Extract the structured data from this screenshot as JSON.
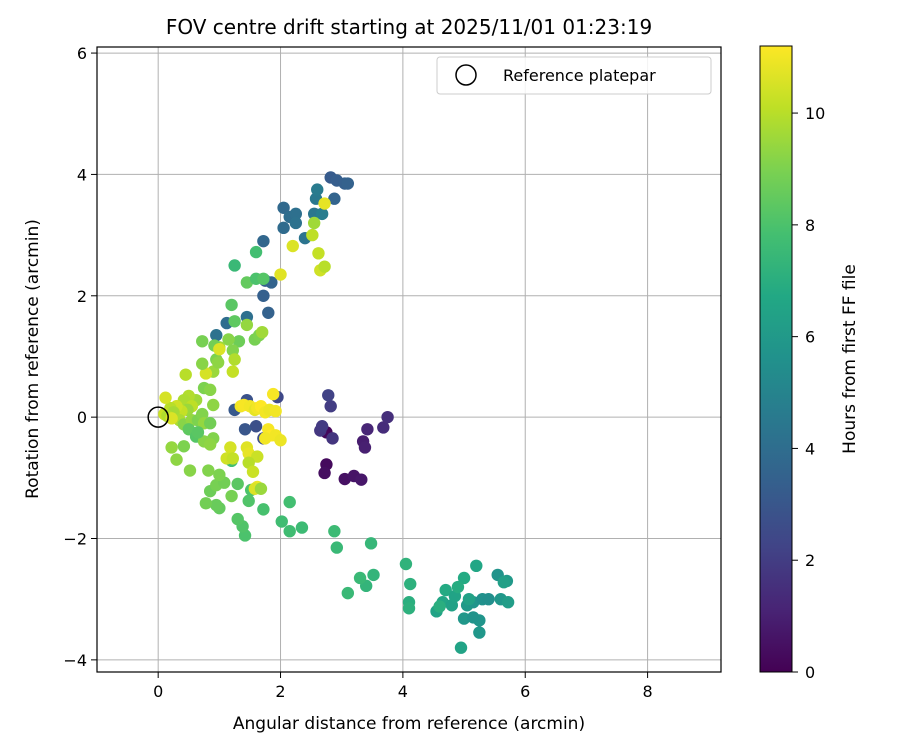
{
  "chart_data": {
    "type": "scatter",
    "title": "FOV centre drift starting at 2025/11/01 01:23:19",
    "xlabel": "Angular distance from reference (arcmin)",
    "ylabel": "Rotation from reference (arcmin)",
    "xlim": [
      -1.0,
      9.2
    ],
    "ylim": [
      -4.2,
      6.1
    ],
    "xticks": [
      0,
      2,
      4,
      6,
      8
    ],
    "yticks": [
      -4,
      -2,
      0,
      2,
      4,
      6
    ],
    "xtick_labels": [
      "0",
      "2",
      "4",
      "6",
      "8"
    ],
    "ytick_labels": [
      "−4",
      "−2",
      "0",
      "2",
      "4",
      "6"
    ],
    "grid": true,
    "colormap": "viridis",
    "colorbar": {
      "label": "Hours from first FF file",
      "range": [
        0,
        11.2
      ],
      "ticks": [
        0,
        2,
        4,
        6,
        8,
        10
      ],
      "tick_labels": [
        "0",
        "2",
        "4",
        "6",
        "8",
        "10"
      ]
    },
    "legend": {
      "position": "top-right",
      "entries": [
        "Reference platepar"
      ]
    },
    "reference": {
      "x": 0,
      "y": 0
    },
    "points": [
      [
        2.75,
        -0.25,
        0.2
      ],
      [
        2.75,
        -0.78,
        0.3
      ],
      [
        2.72,
        -0.92,
        0.4
      ],
      [
        3.05,
        -1.02,
        0.5
      ],
      [
        3.2,
        -0.97,
        0.6
      ],
      [
        3.32,
        -1.03,
        0.7
      ],
      [
        3.35,
        -0.4,
        0.9
      ],
      [
        3.38,
        -0.5,
        1.0
      ],
      [
        3.42,
        -0.2,
        1.2
      ],
      [
        3.68,
        -0.17,
        1.4
      ],
      [
        3.75,
        0.0,
        1.5
      ],
      [
        2.85,
        -0.35,
        1.7
      ],
      [
        2.65,
        -0.22,
        1.8
      ],
      [
        2.68,
        -0.15,
        1.9
      ],
      [
        2.82,
        0.18,
        2.0
      ],
      [
        2.78,
        0.36,
        2.2
      ],
      [
        1.95,
        0.33,
        2.4
      ],
      [
        1.72,
        -0.35,
        2.6
      ],
      [
        1.6,
        -0.15,
        2.7
      ],
      [
        1.45,
        0.28,
        2.8
      ],
      [
        1.42,
        -0.2,
        3.0
      ],
      [
        1.25,
        0.12,
        3.1
      ],
      [
        1.75,
        2.25,
        3.3
      ],
      [
        1.72,
        2.0,
        3.4
      ],
      [
        1.8,
        1.72,
        3.5
      ],
      [
        1.85,
        2.22,
        3.6
      ],
      [
        1.72,
        2.9,
        3.7
      ],
      [
        2.05,
        3.45,
        3.8
      ],
      [
        2.05,
        3.12,
        3.9
      ],
      [
        2.15,
        3.3,
        4.0
      ],
      [
        2.25,
        3.35,
        4.1
      ],
      [
        2.25,
        3.2,
        4.2
      ],
      [
        2.4,
        2.95,
        4.3
      ],
      [
        2.55,
        3.35,
        4.4
      ],
      [
        2.58,
        3.6,
        4.5
      ],
      [
        2.6,
        3.75,
        4.6
      ],
      [
        2.68,
        3.35,
        4.7
      ],
      [
        2.82,
        3.95,
        3.2
      ],
      [
        2.92,
        3.9,
        3.3
      ],
      [
        3.05,
        3.85,
        3.4
      ],
      [
        3.1,
        3.85,
        3.5
      ],
      [
        2.88,
        3.6,
        3.6
      ],
      [
        0.95,
        1.35,
        4.2
      ],
      [
        1.12,
        1.55,
        4.0
      ],
      [
        1.45,
        1.65,
        4.1
      ],
      [
        4.95,
        -3.8,
        6.5
      ],
      [
        5.25,
        -3.55,
        5.9
      ],
      [
        5.25,
        -3.35,
        5.8
      ],
      [
        5.0,
        -3.32,
        5.9
      ],
      [
        5.15,
        -3.3,
        5.7
      ],
      [
        4.55,
        -3.2,
        6.5
      ],
      [
        4.65,
        -3.05,
        6.6
      ],
      [
        4.8,
        -3.1,
        6.4
      ],
      [
        5.05,
        -3.1,
        6.0
      ],
      [
        5.15,
        -3.05,
        5.8
      ],
      [
        5.3,
        -3.0,
        5.6
      ],
      [
        5.4,
        -3.0,
        5.5
      ],
      [
        5.6,
        -3.0,
        5.9
      ],
      [
        5.72,
        -3.05,
        6.2
      ],
      [
        5.55,
        -2.6,
        5.7
      ],
      [
        5.7,
        -2.7,
        6.0
      ],
      [
        5.65,
        -2.72,
        6.3
      ],
      [
        5.2,
        -2.45,
        6.6
      ],
      [
        5.0,
        -2.65,
        6.8
      ],
      [
        4.7,
        -2.85,
        6.8
      ],
      [
        4.85,
        -2.95,
        6.5
      ],
      [
        4.9,
        -2.8,
        6.9
      ],
      [
        5.08,
        -3.0,
        6.4
      ],
      [
        4.6,
        -3.12,
        7.0
      ],
      [
        4.1,
        -3.05,
        7.0
      ],
      [
        4.1,
        -3.15,
        7.1
      ],
      [
        4.12,
        -2.75,
        7.1
      ],
      [
        4.05,
        -2.42,
        7.2
      ],
      [
        3.52,
        -2.6,
        7.3
      ],
      [
        3.4,
        -2.78,
        7.3
      ],
      [
        3.3,
        -2.65,
        7.5
      ],
      [
        3.1,
        -2.9,
        7.5
      ],
      [
        3.48,
        -2.08,
        7.4
      ],
      [
        2.92,
        -2.15,
        7.5
      ],
      [
        2.88,
        -1.88,
        7.6
      ],
      [
        2.35,
        -1.82,
        7.6
      ],
      [
        2.15,
        -1.88,
        7.7
      ],
      [
        2.02,
        -1.72,
        7.7
      ],
      [
        2.15,
        -1.4,
        7.8
      ],
      [
        1.72,
        -1.52,
        7.9
      ],
      [
        1.52,
        -1.2,
        8.0
      ],
      [
        1.48,
        -1.38,
        8.1
      ],
      [
        1.42,
        -1.95,
        8.0
      ],
      [
        1.38,
        -1.8,
        8.1
      ],
      [
        1.3,
        -1.68,
        8.2
      ],
      [
        1.3,
        -1.1,
        8.3
      ],
      [
        1.2,
        -0.72,
        7.8
      ],
      [
        1.0,
        -1.5,
        8.5
      ],
      [
        0.95,
        -1.45,
        8.6
      ],
      [
        0.78,
        -1.42,
        8.8
      ],
      [
        0.85,
        -1.22,
        8.7
      ],
      [
        0.95,
        -1.12,
        8.9
      ],
      [
        1.08,
        -1.08,
        8.8
      ],
      [
        1.0,
        -0.95,
        9.0
      ],
      [
        1.2,
        -1.3,
        8.9
      ],
      [
        0.82,
        -0.88,
        9.1
      ],
      [
        1.25,
        2.5,
        7.5
      ],
      [
        1.6,
        2.72,
        7.8
      ],
      [
        1.45,
        2.22,
        8.5
      ],
      [
        1.6,
        2.28,
        8.0
      ],
      [
        1.72,
        2.28,
        8.2
      ],
      [
        1.2,
        1.85,
        8.3
      ],
      [
        1.25,
        1.58,
        8.4
      ],
      [
        1.45,
        1.52,
        9.4
      ],
      [
        1.58,
        1.28,
        8.9
      ],
      [
        1.65,
        1.35,
        9.0
      ],
      [
        1.7,
        1.4,
        9.6
      ],
      [
        1.32,
        1.25,
        8.7
      ],
      [
        1.15,
        1.28,
        9.2
      ],
      [
        1.22,
        1.1,
        9.1
      ],
      [
        1.25,
        0.95,
        9.9
      ],
      [
        1.22,
        0.75,
        10.2
      ],
      [
        1.0,
        1.15,
        9.6
      ],
      [
        0.95,
        0.95,
        9.0
      ],
      [
        0.9,
        0.75,
        9.5
      ],
      [
        0.78,
        0.72,
        10.5
      ],
      [
        0.72,
        0.88,
        9.2
      ],
      [
        0.72,
        1.25,
        8.9
      ],
      [
        0.92,
        1.18,
        8.8
      ],
      [
        0.98,
        0.9,
        9.3
      ],
      [
        0.75,
        0.48,
        9.0
      ],
      [
        0.85,
        0.45,
        9.2
      ],
      [
        0.9,
        0.2,
        9.3
      ],
      [
        0.62,
        0.28,
        9.6
      ],
      [
        0.5,
        0.35,
        9.9
      ],
      [
        0.45,
        0.7,
        10.0
      ],
      [
        0.42,
        0.28,
        9.8
      ],
      [
        0.55,
        0.18,
        10.1
      ],
      [
        0.48,
        0.12,
        9.5
      ],
      [
        0.38,
        0.1,
        10.2
      ],
      [
        0.3,
        0.18,
        10.4
      ],
      [
        0.2,
        0.15,
        10.0
      ],
      [
        0.25,
        0.08,
        9.7
      ],
      [
        0.35,
        -0.05,
        9.8
      ],
      [
        0.42,
        -0.12,
        9.2
      ],
      [
        0.55,
        -0.05,
        9.4
      ],
      [
        0.65,
        -0.05,
        9.0
      ],
      [
        0.72,
        0.05,
        9.1
      ],
      [
        0.75,
        -0.1,
        9.4
      ],
      [
        0.5,
        -0.2,
        8.4
      ],
      [
        0.62,
        -0.32,
        8.2
      ],
      [
        0.85,
        -0.1,
        8.8
      ],
      [
        0.9,
        -0.35,
        9.1
      ],
      [
        0.75,
        -0.4,
        9.2
      ],
      [
        0.85,
        -0.45,
        9.3
      ],
      [
        0.65,
        -0.25,
        8.3
      ],
      [
        0.42,
        -0.48,
        9.0
      ],
      [
        0.22,
        -0.5,
        9.4
      ],
      [
        0.3,
        -0.7,
        9.3
      ],
      [
        0.52,
        -0.88,
        9.2
      ],
      [
        0.12,
        0.32,
        10.5
      ],
      [
        0.1,
        0.05,
        10.3
      ],
      [
        0.15,
        0.02,
        9.9
      ],
      [
        0.22,
        -0.02,
        10.6
      ],
      [
        1.0,
        1.12,
        10.6
      ],
      [
        1.35,
        0.18,
        11.0
      ],
      [
        1.4,
        0.2,
        11.1
      ],
      [
        1.5,
        0.18,
        11.0
      ],
      [
        1.58,
        0.12,
        10.8
      ],
      [
        1.62,
        0.15,
        11.0
      ],
      [
        1.68,
        0.18,
        11.2
      ],
      [
        1.75,
        0.08,
        11.0
      ],
      [
        1.82,
        0.12,
        10.9
      ],
      [
        1.88,
        0.38,
        11.1
      ],
      [
        1.92,
        0.1,
        11.0
      ],
      [
        1.8,
        -0.2,
        11.1
      ],
      [
        1.85,
        -0.3,
        11.2
      ],
      [
        1.75,
        -0.35,
        11.0
      ],
      [
        1.92,
        -0.3,
        11.0
      ],
      [
        2.0,
        -0.38,
        10.9
      ],
      [
        1.45,
        -0.5,
        10.7
      ],
      [
        1.48,
        -0.6,
        10.8
      ],
      [
        1.62,
        -0.65,
        10.3
      ],
      [
        1.18,
        -0.5,
        10.5
      ],
      [
        1.12,
        -0.68,
        10.4
      ],
      [
        1.22,
        -0.68,
        10.2
      ],
      [
        1.48,
        -0.75,
        10.0
      ],
      [
        1.55,
        -0.9,
        10.3
      ],
      [
        1.62,
        -1.15,
        10.9
      ],
      [
        1.58,
        -1.18,
        10.6
      ],
      [
        1.68,
        -1.18,
        9.5
      ],
      [
        2.0,
        2.35,
        10.7
      ],
      [
        2.2,
        2.82,
        10.6
      ],
      [
        2.52,
        3.0,
        10.1
      ],
      [
        2.62,
        2.7,
        10.2
      ],
      [
        2.65,
        2.42,
        10.4
      ],
      [
        2.72,
        2.48,
        10.0
      ],
      [
        2.55,
        3.2,
        9.6
      ],
      [
        2.72,
        3.52,
        10.8
      ]
    ]
  }
}
